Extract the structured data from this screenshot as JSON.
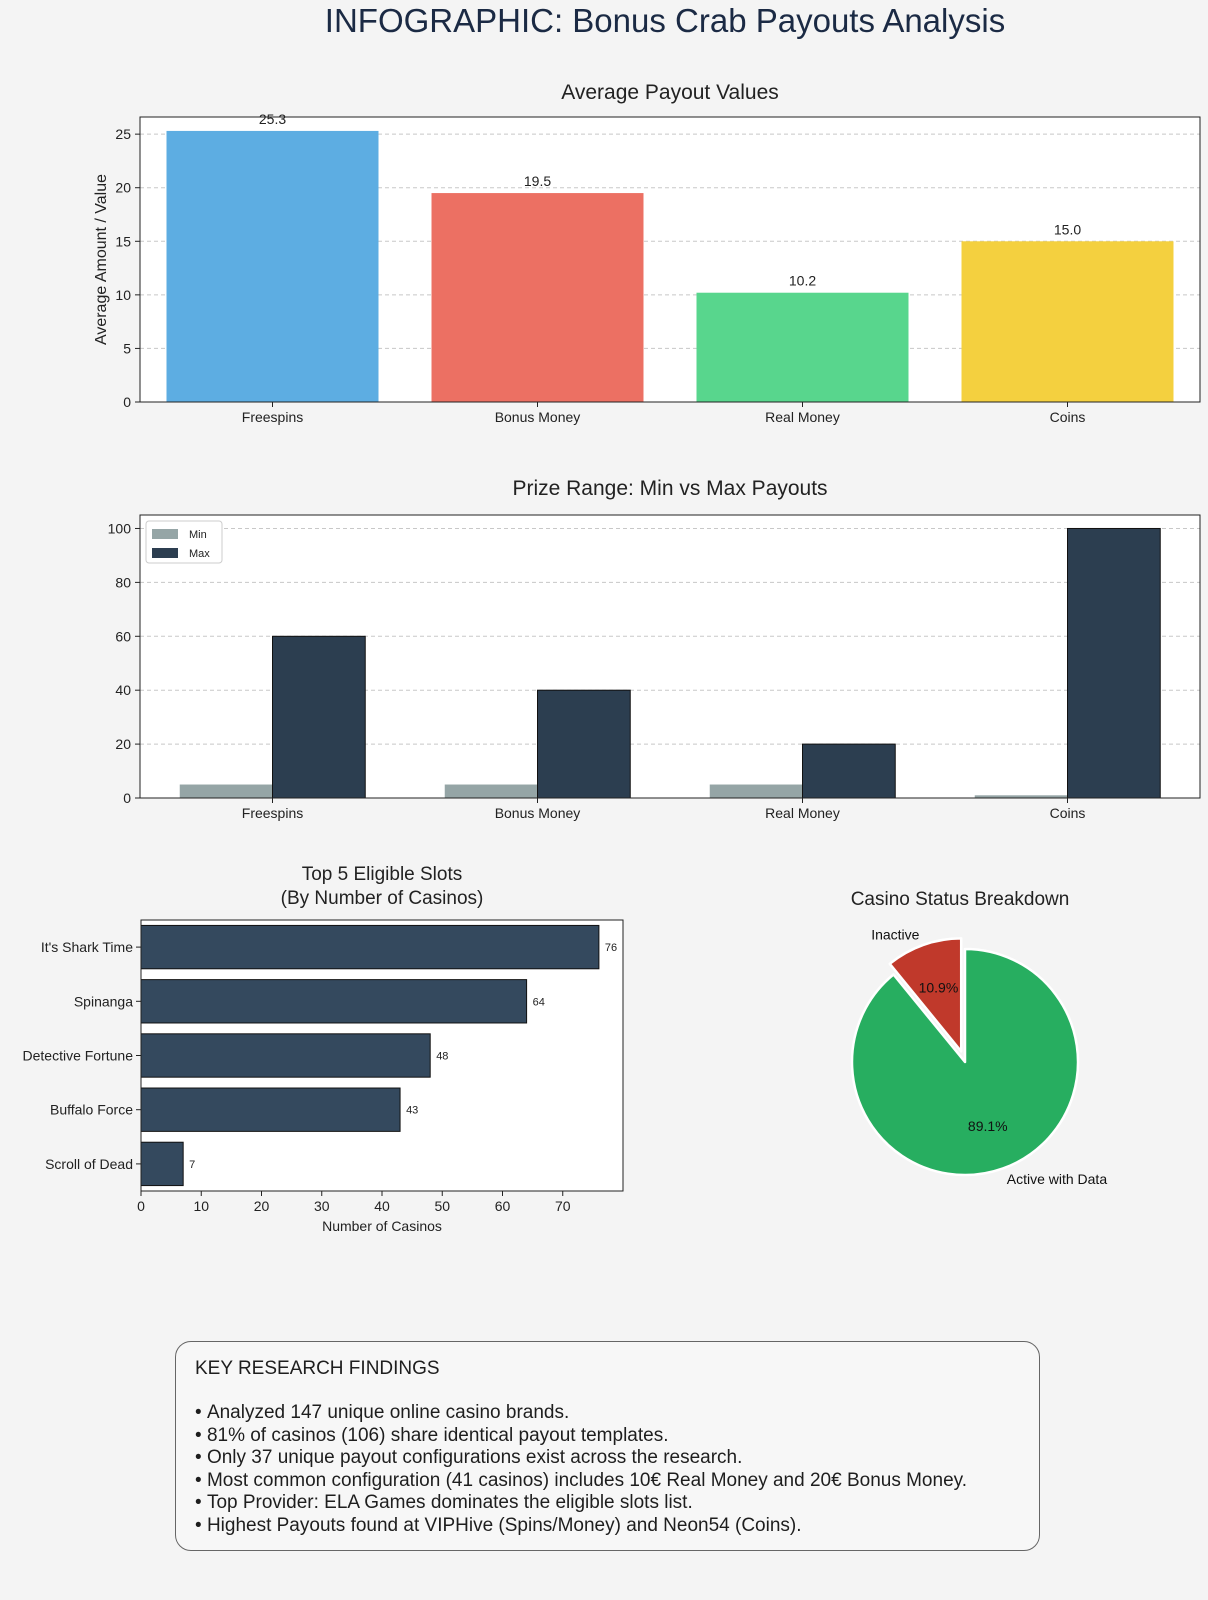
{
  "title": "INFOGRAPHIC: Bonus Crab Payouts Analysis",
  "chart_data": [
    {
      "id": "avg",
      "type": "bar",
      "title": "Average Payout Values",
      "ylabel": "Average Amount / Value",
      "xlabel": "",
      "categories": [
        "Freespins",
        "Bonus Money",
        "Real Money",
        "Coins"
      ],
      "values": [
        25.3,
        19.5,
        10.2,
        15.0
      ],
      "value_labels": [
        "25.3",
        "19.5",
        "10.2",
        "15.0"
      ],
      "colors": [
        "#5dade2",
        "#ec7063",
        "#58d68d",
        "#f4d03f"
      ],
      "ylim": [
        0,
        26.6
      ],
      "yticks": [
        0,
        5,
        10,
        15,
        20,
        25
      ],
      "grid": true
    },
    {
      "id": "range",
      "type": "bar",
      "title": "Prize Range: Min vs Max Payouts",
      "categories": [
        "Freespins",
        "Bonus Money",
        "Real Money",
        "Coins"
      ],
      "series": [
        {
          "name": "Min",
          "values": [
            5,
            5,
            5,
            1
          ],
          "color": "#95a5a6"
        },
        {
          "name": "Max",
          "values": [
            60,
            40,
            20,
            100
          ],
          "color": "#2c3e50"
        }
      ],
      "legend": "top-left",
      "ylim": [
        0,
        105
      ],
      "yticks": [
        0,
        20,
        40,
        60,
        80,
        100
      ],
      "grid": true
    },
    {
      "id": "slots",
      "type": "barh",
      "title": "Top 5 Eligible Slots\n(By Number of Casinos)",
      "title_lines": [
        "Top 5 Eligible Slots",
        "(By Number of Casinos)"
      ],
      "xlabel": "Number of Casinos",
      "categories": [
        "It's Shark Time",
        "Spinanga",
        "Detective Fortune",
        "Buffalo Force",
        "Scroll of Dead"
      ],
      "values": [
        76,
        64,
        48,
        43,
        7
      ],
      "color": "#34495e",
      "xlim": [
        0,
        80
      ],
      "xticks": [
        0,
        10,
        20,
        30,
        40,
        50,
        60,
        70
      ]
    },
    {
      "id": "status",
      "type": "pie",
      "title": "Casino Status Breakdown",
      "labels": [
        "Inactive",
        "Active with Data"
      ],
      "values": [
        10.9,
        89.1
      ],
      "pct_labels": [
        "10.9%",
        "89.1%"
      ],
      "colors": [
        "#c0392b",
        "#27ae60"
      ],
      "explode": [
        0.1,
        0
      ]
    }
  ],
  "findings": {
    "heading": "KEY RESEARCH FINDINGS",
    "items": [
      "Analyzed 147 unique online casino brands.",
      "81% of casinos (106) share identical payout templates.",
      "Only 37 unique payout configurations exist across the research.",
      "Most common configuration (41 casinos) includes 10€ Real Money and 20€ Bonus Money.",
      "Top Provider: ELA Games dominates the eligible slots list.",
      "Highest Payouts found at VIPHive (Spins/Money) and Neon54 (Coins)."
    ]
  }
}
